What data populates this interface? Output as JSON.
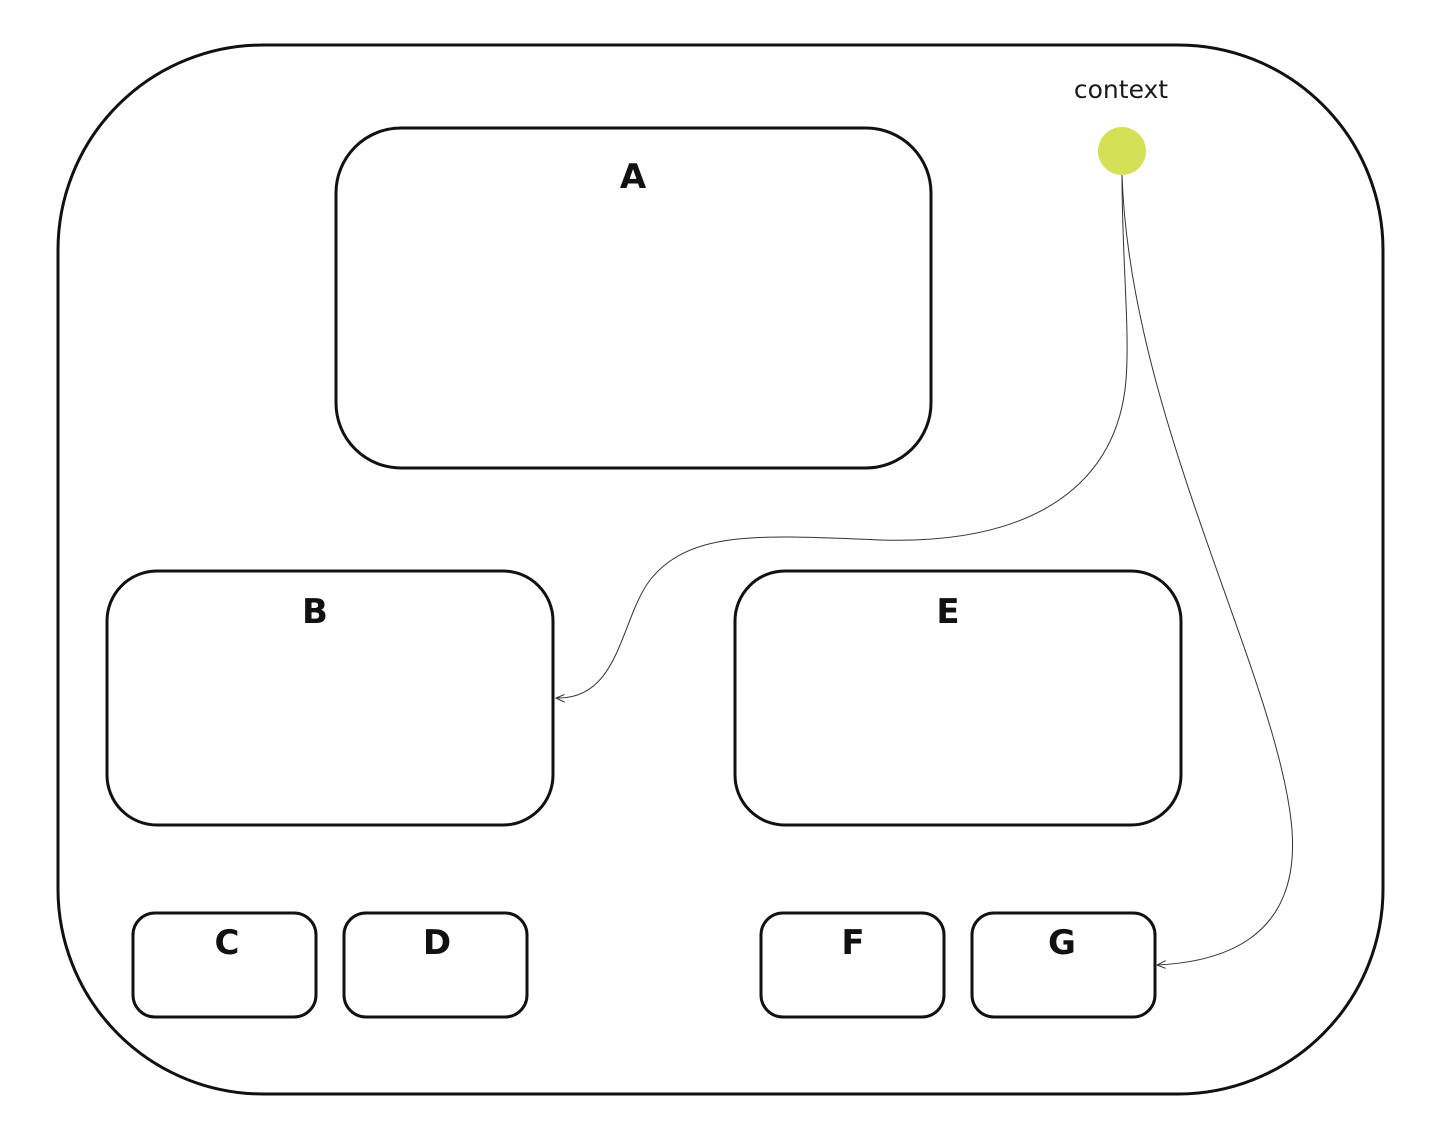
{
  "diagram": {
    "context": {
      "label": "context",
      "color": "#d4e157"
    },
    "nodes": {
      "a": "A",
      "b": "B",
      "c": "C",
      "d": "D",
      "e": "E",
      "f": "F",
      "g": "G"
    },
    "edges": [
      {
        "from": "context",
        "to": "B"
      },
      {
        "from": "context",
        "to": "G"
      }
    ]
  }
}
